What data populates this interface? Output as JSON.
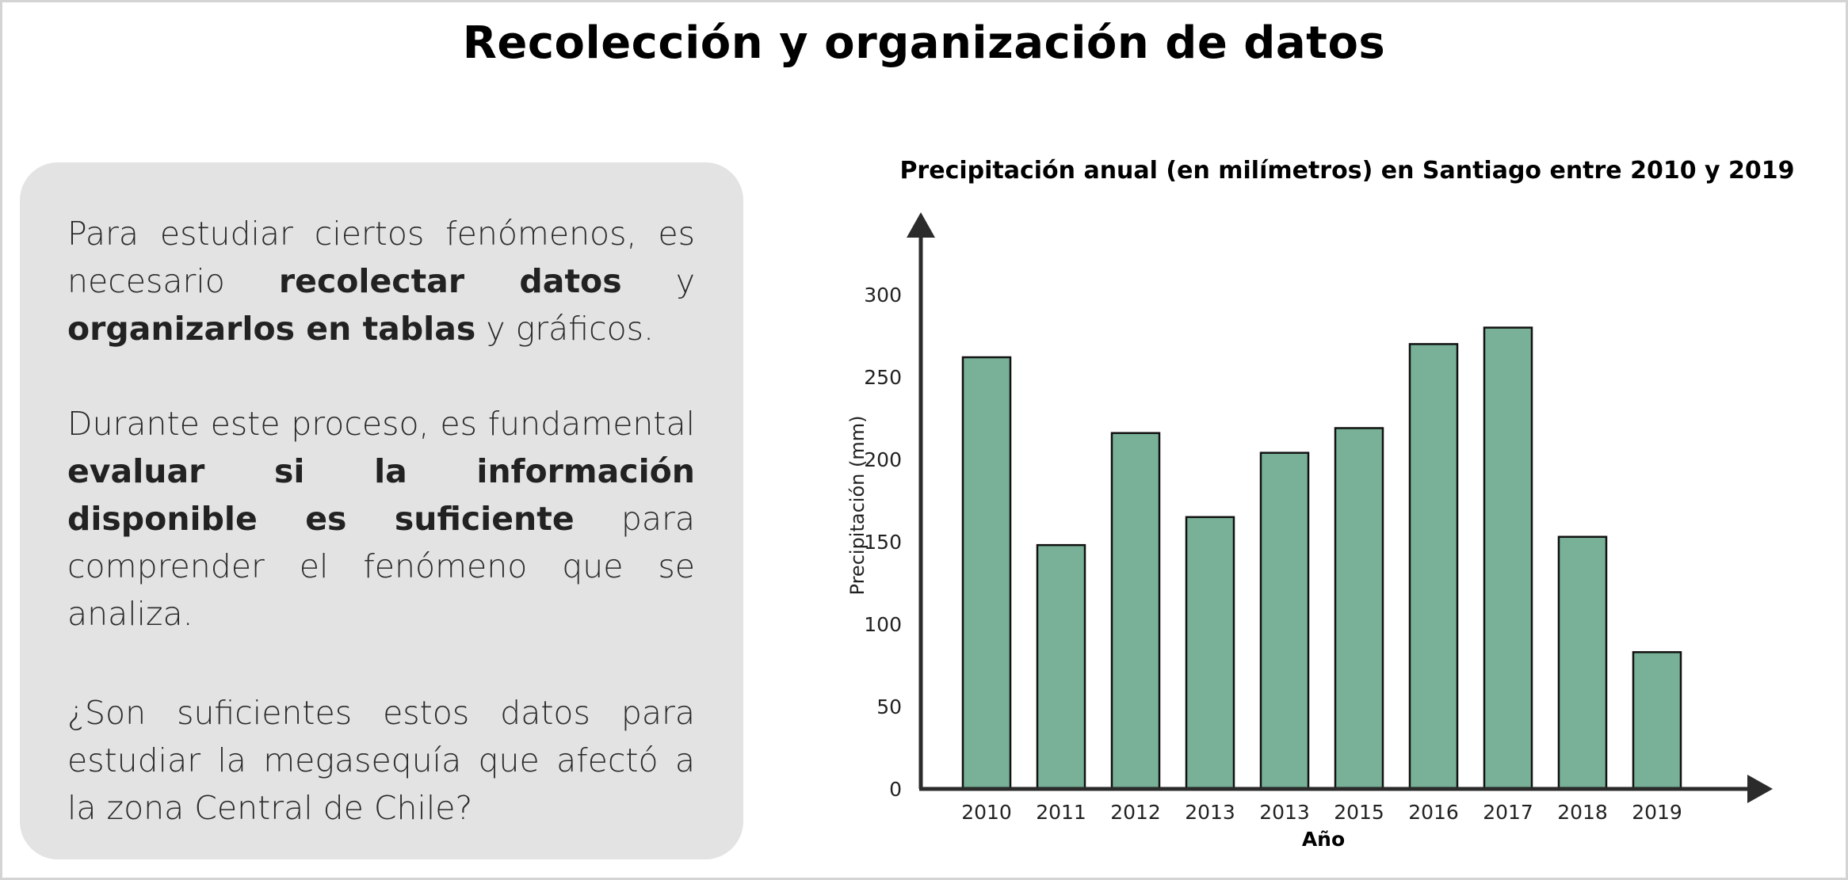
{
  "header": {
    "title": "Recolección y organización de datos"
  },
  "text_box": {
    "paragraphs": [
      [
        {
          "text": "Para estudiar ciertos fenómenos, es necesario ",
          "bold": false
        },
        {
          "text": "recolectar datos",
          "bold": true
        },
        {
          "text": " y ",
          "bold": false
        },
        {
          "text": "organizarlos en tablas",
          "bold": true
        },
        {
          "text": " y gráficos.",
          "bold": false
        }
      ],
      [
        {
          "text": "Durante este proceso, es fundamental ",
          "bold": false
        },
        {
          "text": "evaluar si la información disponible es suficiente",
          "bold": true
        },
        {
          "text": " para comprender el fenómeno que se analiza.",
          "bold": false
        }
      ],
      [
        {
          "text": "¿Son suficientes estos datos para estudiar la megasequía que afectó a la zona Central de Chile?",
          "bold": false
        }
      ]
    ]
  },
  "chart_data": {
    "type": "bar",
    "title": "Precipitación anual (en milímetros) en Santiago entre 2010 y 2019",
    "xlabel": "Año",
    "ylabel": "Precipitación (mm)",
    "categories": [
      "2010",
      "2011",
      "2012",
      "2013",
      "2013",
      "2015",
      "2016",
      "2017",
      "2018",
      "2019"
    ],
    "values": [
      262,
      148,
      216,
      165,
      204,
      219,
      270,
      280,
      153,
      83
    ],
    "yticks": [
      0,
      50,
      100,
      150,
      200,
      250,
      300
    ],
    "ylim": [
      0,
      300
    ],
    "grid": false,
    "bar_color": "#78b197",
    "bar_border_color": "#111111",
    "axis_color": "#2b2b2b"
  }
}
